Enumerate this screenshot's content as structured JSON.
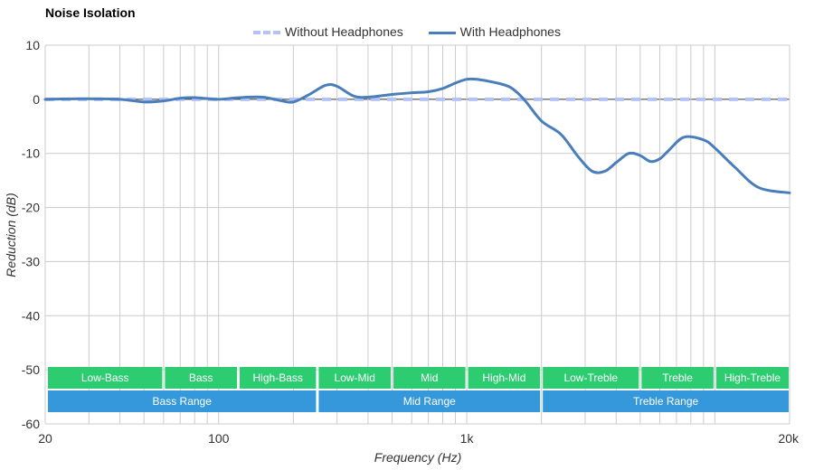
{
  "chart_data": {
    "type": "line",
    "title": "Noise Isolation",
    "xlabel": "Frequency (Hz)",
    "ylabel": "Reduction (dB)",
    "xscale": "log",
    "xlim": [
      20,
      20000
    ],
    "ylim": [
      -60,
      10
    ],
    "x_ticks": [
      {
        "value": 20,
        "label": "20"
      },
      {
        "value": 100,
        "label": "100"
      },
      {
        "value": 1000,
        "label": "1k"
      },
      {
        "value": 20000,
        "label": "20k"
      }
    ],
    "y_ticks": [
      10,
      0,
      -10,
      -20,
      -30,
      -40,
      -50,
      -60
    ],
    "grid": true,
    "legend_position": "top-center",
    "series": [
      {
        "name": "Without Headphones",
        "style": "dashed",
        "color": "#b3c3f7",
        "x": [
          20,
          20000
        ],
        "y": [
          0,
          0
        ]
      },
      {
        "name": "With Headphones",
        "style": "solid",
        "color": "#4a7ebb",
        "x": [
          20,
          28,
          40,
          50,
          60,
          70,
          80,
          100,
          120,
          150,
          180,
          200,
          230,
          270,
          300,
          350,
          400,
          500,
          600,
          700,
          800,
          900,
          1000,
          1100,
          1300,
          1500,
          1700,
          2000,
          2400,
          2800,
          3200,
          3600,
          4000,
          4500,
          5000,
          5500,
          6000,
          6500,
          7500,
          9000,
          10000,
          12000,
          15000,
          20000
        ],
        "y": [
          0,
          0.1,
          0,
          -0.5,
          -0.3,
          0.2,
          0.3,
          0,
          0.3,
          0.4,
          -0.3,
          -0.5,
          0.8,
          2.6,
          2.4,
          0.6,
          0.4,
          0.9,
          1.2,
          1.4,
          2,
          3,
          3.7,
          3.7,
          3.1,
          2.2,
          0,
          -4,
          -6.5,
          -10.5,
          -13.3,
          -13.3,
          -11.7,
          -10,
          -10.4,
          -11.5,
          -11,
          -9.5,
          -7,
          -7.5,
          -9,
          -12.5,
          -16.3,
          -17.3
        ]
      }
    ],
    "annotations": {
      "bands": [
        {
          "label": "Low-Bass",
          "from": 20,
          "to": 60
        },
        {
          "label": "Bass",
          "from": 60,
          "to": 120
        },
        {
          "label": "High-Bass",
          "from": 120,
          "to": 250
        },
        {
          "label": "Low-Mid",
          "from": 250,
          "to": 500
        },
        {
          "label": "Mid",
          "from": 500,
          "to": 1000
        },
        {
          "label": "High-Mid",
          "from": 1000,
          "to": 2000
        },
        {
          "label": "Low-Treble",
          "from": 2000,
          "to": 5000
        },
        {
          "label": "Treble",
          "from": 5000,
          "to": 10000
        },
        {
          "label": "High-Treble",
          "from": 10000,
          "to": 20000
        }
      ],
      "ranges": [
        {
          "label": "Bass Range",
          "from": 20,
          "to": 250
        },
        {
          "label": "Mid Range",
          "from": 250,
          "to": 2000
        },
        {
          "label": "Treble Range",
          "from": 2000,
          "to": 20000
        }
      ],
      "band_color": "#2ecc71",
      "range_color": "#3498db"
    }
  }
}
